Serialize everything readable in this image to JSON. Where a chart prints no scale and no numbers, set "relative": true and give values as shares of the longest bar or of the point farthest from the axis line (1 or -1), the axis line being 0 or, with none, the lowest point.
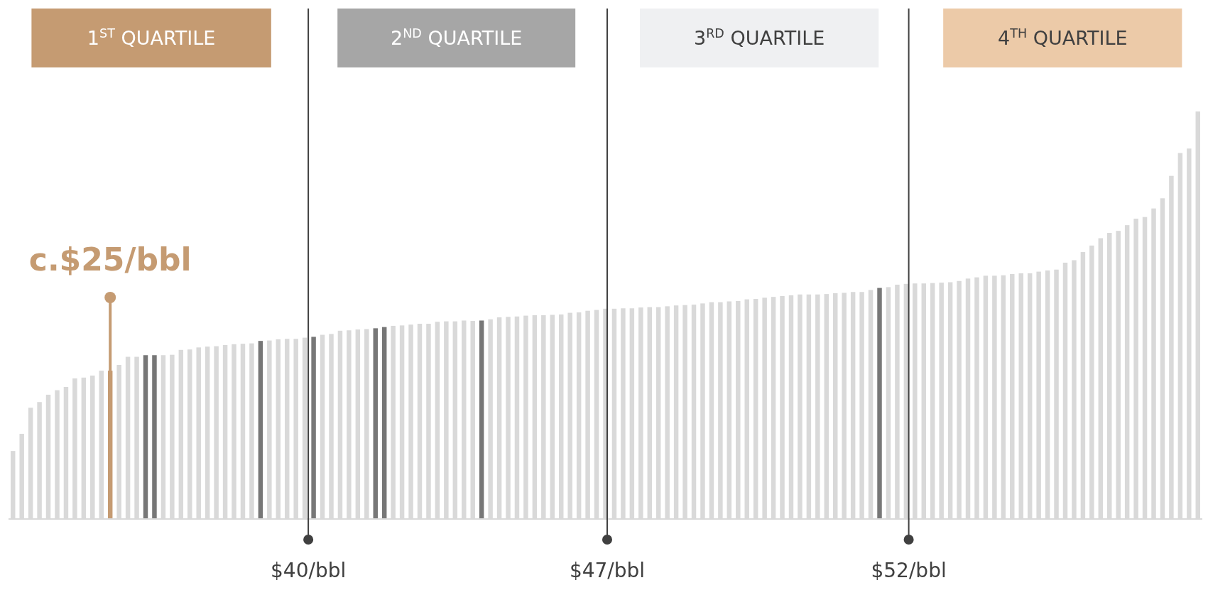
{
  "chart_data": {
    "type": "bar",
    "relative": true,
    "categories": [
      null,
      null,
      null,
      null,
      null,
      null,
      null,
      null,
      null,
      null,
      null,
      null,
      null,
      null,
      null,
      null,
      null,
      null,
      null,
      null,
      null,
      null,
      null,
      null,
      null,
      null,
      null,
      null,
      null,
      null,
      null,
      null,
      null,
      null,
      null,
      null,
      null,
      null,
      null,
      null,
      null,
      null,
      null,
      null,
      null,
      null,
      null,
      null,
      null,
      null,
      null,
      null,
      null,
      null,
      null,
      null,
      null,
      null,
      null,
      null,
      null,
      null,
      null,
      null,
      null,
      null,
      null,
      null,
      null,
      null,
      null,
      null,
      null,
      null,
      null,
      null,
      null,
      null,
      null,
      null,
      null,
      null,
      null,
      null,
      null,
      null,
      null,
      null,
      null,
      null,
      null,
      null,
      null,
      null,
      null,
      null,
      null,
      null,
      null,
      null,
      null,
      null,
      null,
      null,
      null,
      null,
      null,
      null,
      null,
      null,
      null,
      null,
      null,
      null,
      null,
      null,
      null,
      null,
      null,
      null,
      null,
      null,
      null,
      null,
      null,
      null,
      null,
      null,
      null,
      null,
      null,
      null,
      null,
      null,
      null
    ],
    "values": [
      0.167,
      0.209,
      0.273,
      0.287,
      0.305,
      0.316,
      0.324,
      0.345,
      0.347,
      0.352,
      0.364,
      0.364,
      0.378,
      0.398,
      0.398,
      0.402,
      0.402,
      0.402,
      0.403,
      0.415,
      0.416,
      0.421,
      0.423,
      0.424,
      0.427,
      0.429,
      0.43,
      0.431,
      0.437,
      0.438,
      0.441,
      0.442,
      0.442,
      0.445,
      0.447,
      0.452,
      0.454,
      0.462,
      0.463,
      0.465,
      0.466,
      0.468,
      0.471,
      0.474,
      0.475,
      0.477,
      0.479,
      0.479,
      0.484,
      0.485,
      0.485,
      0.487,
      0.486,
      0.487,
      0.49,
      0.495,
      0.496,
      0.497,
      0.499,
      0.5,
      0.5,
      0.501,
      0.502,
      0.506,
      0.507,
      0.511,
      0.513,
      0.516,
      0.516,
      0.517,
      0.517,
      0.519,
      0.52,
      0.52,
      0.522,
      0.524,
      0.525,
      0.526,
      0.529,
      0.532,
      0.532,
      0.534,
      0.535,
      0.539,
      0.54,
      0.543,
      0.545,
      0.547,
      0.549,
      0.551,
      0.551,
      0.551,
      0.552,
      0.554,
      0.555,
      0.557,
      0.557,
      0.562,
      0.567,
      0.569,
      0.575,
      0.577,
      0.578,
      0.578,
      0.579,
      0.58,
      0.581,
      0.584,
      0.59,
      0.593,
      0.597,
      0.597,
      0.598,
      0.601,
      0.603,
      0.603,
      0.607,
      0.61,
      0.612,
      0.629,
      0.635,
      0.655,
      0.671,
      0.689,
      0.702,
      0.707,
      0.721,
      0.737,
      0.741,
      0.762,
      0.787,
      0.842,
      0.898,
      0.909,
      1
    ],
    "colors": [
      "#d9d9d9",
      "#d9d9d9",
      "#d9d9d9",
      "#d9d9d9",
      "#d9d9d9",
      "#d9d9d9",
      "#d9d9d9",
      "#d9d9d9",
      "#d9d9d9",
      "#d9d9d9",
      "#d9d9d9",
      "#c59b72",
      "#d9d9d9",
      "#d9d9d9",
      "#d9d9d9",
      "#777777",
      "#777777",
      "#d9d9d9",
      "#d9d9d9",
      "#d9d9d9",
      "#d9d9d9",
      "#d9d9d9",
      "#d9d9d9",
      "#d9d9d9",
      "#d9d9d9",
      "#d9d9d9",
      "#d9d9d9",
      "#d9d9d9",
      "#777777",
      "#d9d9d9",
      "#d9d9d9",
      "#d9d9d9",
      "#d9d9d9",
      "#d9d9d9",
      "#777777",
      "#d9d9d9",
      "#d9d9d9",
      "#d9d9d9",
      "#d9d9d9",
      "#d9d9d9",
      "#d9d9d9",
      "#777777",
      "#777777",
      "#d9d9d9",
      "#d9d9d9",
      "#d9d9d9",
      "#d9d9d9",
      "#d9d9d9",
      "#d9d9d9",
      "#d9d9d9",
      "#d9d9d9",
      "#d9d9d9",
      "#d9d9d9",
      "#777777",
      "#d9d9d9",
      "#d9d9d9",
      "#d9d9d9",
      "#d9d9d9",
      "#d9d9d9",
      "#d9d9d9",
      "#d9d9d9",
      "#d9d9d9",
      "#d9d9d9",
      "#d9d9d9",
      "#d9d9d9",
      "#d9d9d9",
      "#d9d9d9",
      "#d9d9d9",
      "#d9d9d9",
      "#d9d9d9",
      "#d9d9d9",
      "#d9d9d9",
      "#d9d9d9",
      "#d9d9d9",
      "#d9d9d9",
      "#d9d9d9",
      "#d9d9d9",
      "#d9d9d9",
      "#d9d9d9",
      "#d9d9d9",
      "#d9d9d9",
      "#d9d9d9",
      "#d9d9d9",
      "#d9d9d9",
      "#d9d9d9",
      "#d9d9d9",
      "#d9d9d9",
      "#d9d9d9",
      "#d9d9d9",
      "#d9d9d9",
      "#d9d9d9",
      "#d9d9d9",
      "#d9d9d9",
      "#d9d9d9",
      "#d9d9d9",
      "#d9d9d9",
      "#d9d9d9",
      "#d9d9d9",
      "#777777",
      "#d9d9d9",
      "#d9d9d9",
      "#d9d9d9",
      "#d9d9d9",
      "#d9d9d9",
      "#d9d9d9",
      "#d9d9d9",
      "#d9d9d9",
      "#d9d9d9",
      "#d9d9d9",
      "#d9d9d9",
      "#d9d9d9",
      "#d9d9d9",
      "#d9d9d9",
      "#d9d9d9",
      "#d9d9d9",
      "#d9d9d9",
      "#d9d9d9",
      "#d9d9d9",
      "#d9d9d9",
      "#d9d9d9",
      "#d9d9d9",
      "#d9d9d9",
      "#d9d9d9",
      "#d9d9d9",
      "#d9d9d9",
      "#d9d9d9",
      "#d9d9d9",
      "#d9d9d9",
      "#d9d9d9",
      "#d9d9d9",
      "#d9d9d9",
      "#d9d9d9",
      "#d9d9d9",
      "#d9d9d9",
      "#d9d9d9"
    ],
    "annotations": [
      "c.$25/bbl",
      "1$^{ST}$ QUARTILE",
      "2$^{ND}$ QUARTILE",
      "3$^{RD}$ QUARTILE",
      "4$^{TH}$ QUARTILE",
      "$40/bbl",
      "$47/bbl",
      "$52/bbl"
    ]
  }
}
